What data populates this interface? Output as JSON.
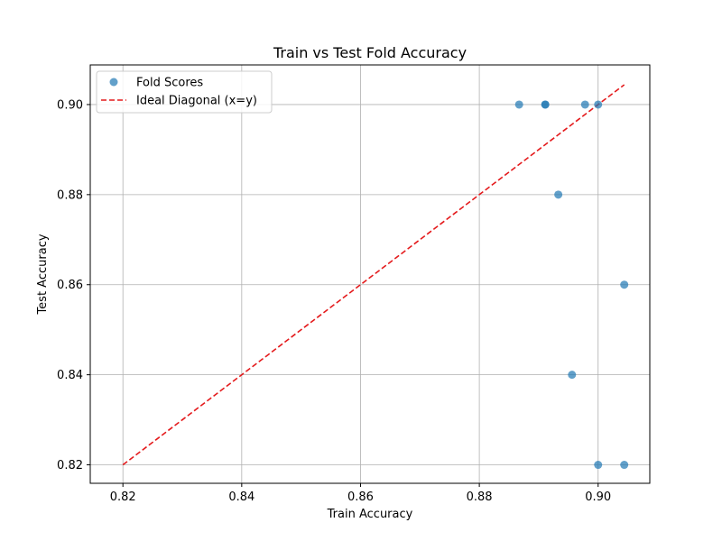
{
  "chart_data": {
    "type": "scatter",
    "title": "Train vs Test Fold Accuracy",
    "xlabel": "Train Accuracy",
    "ylabel": "Test Accuracy",
    "xlim": [
      0.8145,
      0.9087
    ],
    "ylim": [
      0.8159,
      0.9088
    ],
    "xticks": [
      0.82,
      0.84,
      0.86,
      0.88,
      0.9
    ],
    "xtick_labels": [
      "0.82",
      "0.84",
      "0.86",
      "0.88",
      "0.90"
    ],
    "yticks": [
      0.82,
      0.84,
      0.86,
      0.88,
      0.9
    ],
    "ytick_labels": [
      "0.82",
      "0.84",
      "0.86",
      "0.88",
      "0.90"
    ],
    "grid": true,
    "legend_position": "top-left",
    "series": [
      {
        "name": "Fold Scores",
        "kind": "scatter",
        "color": "#1f77b4",
        "points": [
          {
            "x": 0.8867,
            "y": 0.9
          },
          {
            "x": 0.8911,
            "y": 0.9
          },
          {
            "x": 0.8911,
            "y": 0.9
          },
          {
            "x": 0.8978,
            "y": 0.9
          },
          {
            "x": 0.9,
            "y": 0.9
          },
          {
            "x": 0.8933,
            "y": 0.88
          },
          {
            "x": 0.9044,
            "y": 0.86
          },
          {
            "x": 0.8956,
            "y": 0.84
          },
          {
            "x": 0.9,
            "y": 0.82
          },
          {
            "x": 0.9044,
            "y": 0.82
          }
        ]
      },
      {
        "name": "Ideal Diagonal (x=y)",
        "kind": "line",
        "color": "#e41a1c",
        "dashed": true,
        "points": [
          {
            "x": 0.82,
            "y": 0.82
          },
          {
            "x": 0.9044,
            "y": 0.9044
          }
        ]
      }
    ]
  }
}
